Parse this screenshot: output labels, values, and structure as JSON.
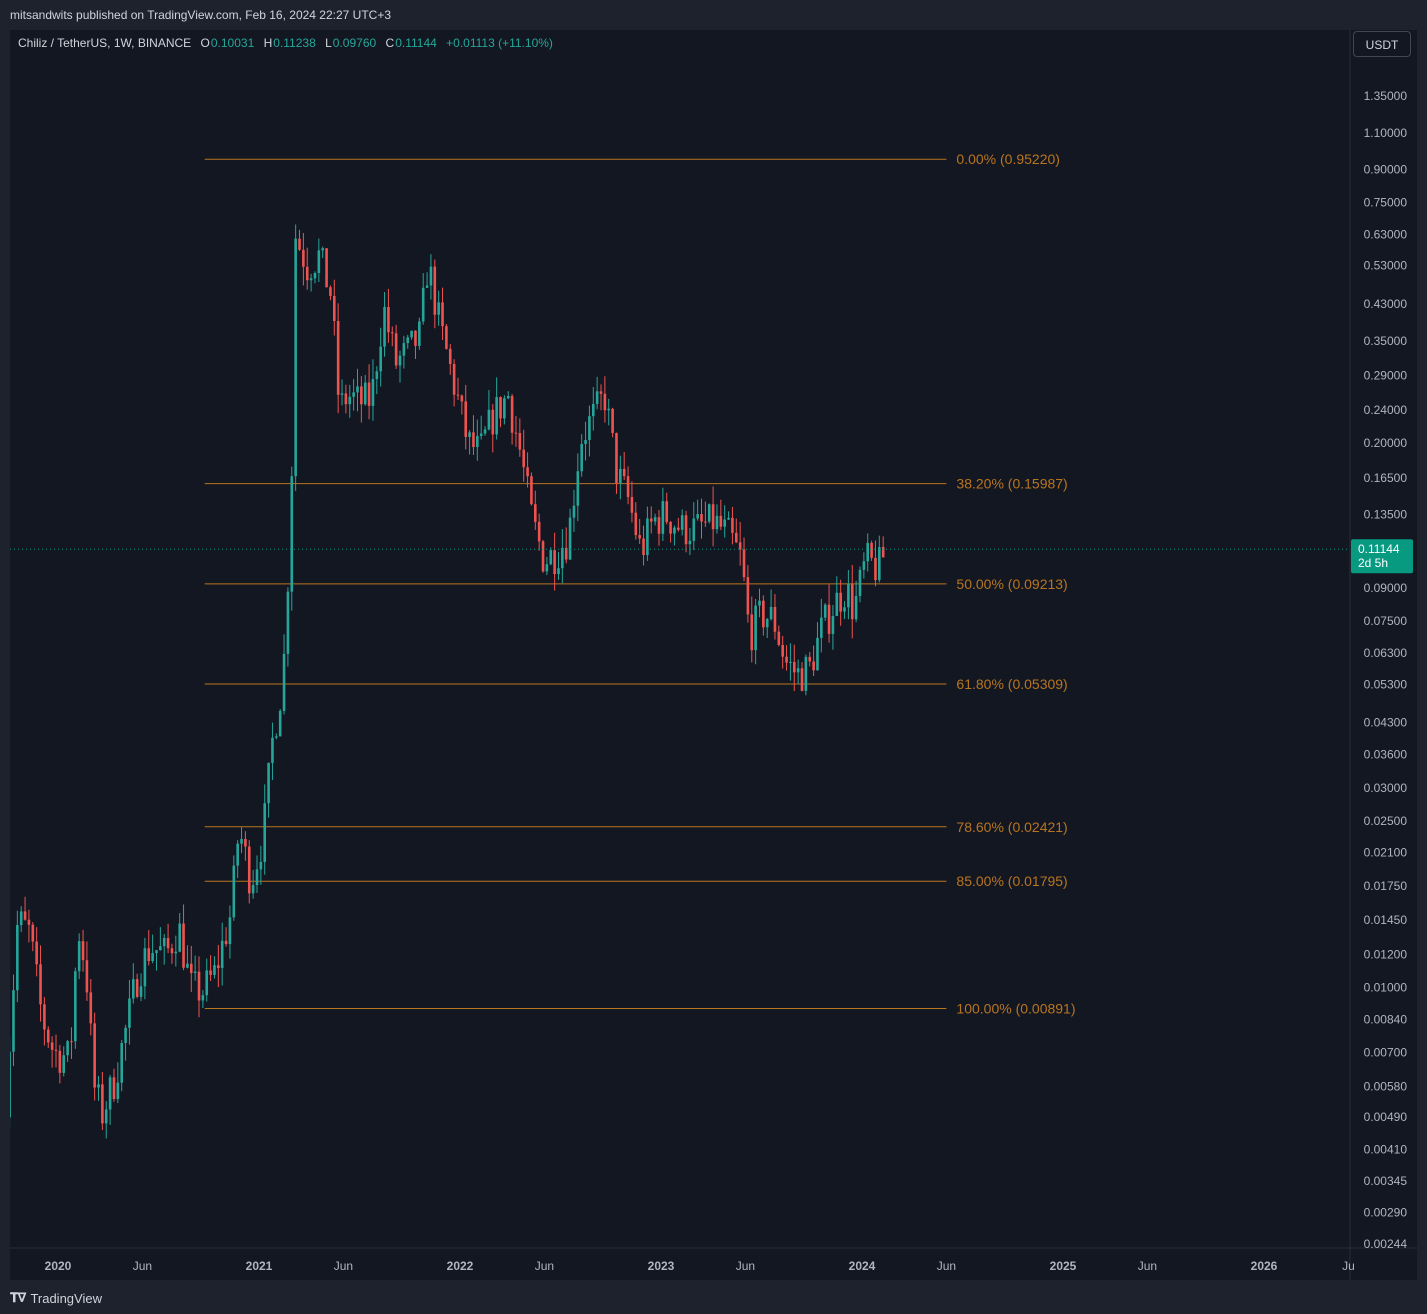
{
  "header": {
    "published_text": "mitsandwits published on TradingView.com, Feb 16, 2024 22:27 UTC+3"
  },
  "legend": {
    "symbol": "Chiliz / TetherUS, 1W, BINANCE",
    "open_label": "O",
    "open": "0.10031",
    "high_label": "H",
    "high": "0.11238",
    "low_label": "L",
    "low": "0.09760",
    "close_label": "C",
    "close": "0.11144",
    "change": "+0.01113 (+11.10%)"
  },
  "toolbar": {
    "currency_button": "USDT"
  },
  "footer": {
    "brand": "TradingView"
  },
  "colors": {
    "background": "#131722",
    "up": "#26a69a",
    "down": "#ef5350",
    "fib": "#b8751f",
    "price_badge": "#089981"
  },
  "chart_data": {
    "type": "candlestick",
    "scale": "log",
    "interval": "1W",
    "current_price": {
      "price": "0.11144",
      "countdown": "2d 5h"
    },
    "price_axis_ticks": [
      "1.35000",
      "1.10000",
      "0.90000",
      "0.75000",
      "0.63000",
      "0.53000",
      "0.43000",
      "0.35000",
      "0.29000",
      "0.24000",
      "0.20000",
      "0.16500",
      "0.13500",
      "0.09000",
      "0.07500",
      "0.06300",
      "0.05300",
      "0.04300",
      "0.03600",
      "0.03000",
      "0.02500",
      "0.02100",
      "0.01750",
      "0.01450",
      "0.01200",
      "0.01000",
      "0.00840",
      "0.00700",
      "0.00580",
      "0.00490",
      "0.00410",
      "0.00345",
      "0.00290",
      "0.00244"
    ],
    "time_axis_ticks": [
      {
        "label": "2020",
        "t": 2020.0,
        "bold": true
      },
      {
        "label": "Jun",
        "t": 2020.42
      },
      {
        "label": "2021",
        "t": 2021.0,
        "bold": true
      },
      {
        "label": "Jun",
        "t": 2021.42
      },
      {
        "label": "2022",
        "t": 2022.0,
        "bold": true
      },
      {
        "label": "Jun",
        "t": 2022.42
      },
      {
        "label": "2023",
        "t": 2023.0,
        "bold": true
      },
      {
        "label": "Jun",
        "t": 2023.42
      },
      {
        "label": "2024",
        "t": 2024.0,
        "bold": true
      },
      {
        "label": "Jun",
        "t": 2024.42
      },
      {
        "label": "2025",
        "t": 2025.0,
        "bold": true
      },
      {
        "label": "Jun",
        "t": 2025.42
      },
      {
        "label": "2026",
        "t": 2026.0,
        "bold": true
      },
      {
        "label": "Ju",
        "t": 2026.42
      }
    ],
    "fib_levels": [
      {
        "label": "0.00% (0.95220)",
        "price": 0.9522
      },
      {
        "label": "38.20% (0.15987)",
        "price": 0.15987
      },
      {
        "label": "50.00% (0.09213)",
        "price": 0.09213
      },
      {
        "label": "61.80% (0.05309)",
        "price": 0.05309
      },
      {
        "label": "78.60% (0.02421)",
        "price": 0.02421
      },
      {
        "label": "85.00% (0.01795)",
        "price": 0.01795
      },
      {
        "label": "100.00% (0.00891)",
        "price": 0.00891
      }
    ],
    "fib_range": {
      "start": 2020.73,
      "end": 2024.42
    },
    "price_path": [
      [
        2019.74,
        0.0055
      ],
      [
        2019.8,
        0.0145
      ],
      [
        2019.86,
        0.0135
      ],
      [
        2019.92,
        0.0085
      ],
      [
        2019.98,
        0.007
      ],
      [
        2020.06,
        0.0068
      ],
      [
        2020.1,
        0.014
      ],
      [
        2020.14,
        0.011
      ],
      [
        2020.18,
        0.0058
      ],
      [
        2020.22,
        0.005
      ],
      [
        2020.28,
        0.006
      ],
      [
        2020.34,
        0.008
      ],
      [
        2020.4,
        0.011
      ],
      [
        2020.46,
        0.0125
      ],
      [
        2020.54,
        0.012
      ],
      [
        2020.6,
        0.014
      ],
      [
        2020.66,
        0.01
      ],
      [
        2020.72,
        0.0098
      ],
      [
        2020.78,
        0.0108
      ],
      [
        2020.86,
        0.015
      ],
      [
        2020.9,
        0.024
      ],
      [
        2020.96,
        0.018
      ],
      [
        2021.02,
        0.023
      ],
      [
        2021.07,
        0.04
      ],
      [
        2021.12,
        0.055
      ],
      [
        2021.16,
        0.14
      ],
      [
        2021.18,
        0.63
      ],
      [
        2021.24,
        0.53
      ],
      [
        2021.3,
        0.56
      ],
      [
        2021.36,
        0.45
      ],
      [
        2021.4,
        0.24
      ],
      [
        2021.44,
        0.26
      ],
      [
        2021.5,
        0.25
      ],
      [
        2021.56,
        0.255
      ],
      [
        2021.62,
        0.42
      ],
      [
        2021.68,
        0.31
      ],
      [
        2021.74,
        0.33
      ],
      [
        2021.8,
        0.36
      ],
      [
        2021.84,
        0.54
      ],
      [
        2021.9,
        0.38
      ],
      [
        2021.96,
        0.29
      ],
      [
        2022.04,
        0.2
      ],
      [
        2022.1,
        0.19
      ],
      [
        2022.16,
        0.23
      ],
      [
        2022.24,
        0.26
      ],
      [
        2022.3,
        0.19
      ],
      [
        2022.36,
        0.13
      ],
      [
        2022.42,
        0.105
      ],
      [
        2022.48,
        0.11
      ],
      [
        2022.54,
        0.12
      ],
      [
        2022.6,
        0.205
      ],
      [
        2022.66,
        0.23
      ],
      [
        2022.72,
        0.26
      ],
      [
        2022.78,
        0.17
      ],
      [
        2022.84,
        0.145
      ],
      [
        2022.9,
        0.11
      ],
      [
        2022.96,
        0.13
      ],
      [
        2023.02,
        0.135
      ],
      [
        2023.1,
        0.125
      ],
      [
        2023.18,
        0.125
      ],
      [
        2023.26,
        0.13
      ],
      [
        2023.34,
        0.12
      ],
      [
        2023.4,
        0.105
      ],
      [
        2023.44,
        0.07
      ],
      [
        2023.5,
        0.078
      ],
      [
        2023.56,
        0.076
      ],
      [
        2023.62,
        0.06
      ],
      [
        2023.68,
        0.056
      ],
      [
        2023.74,
        0.058
      ],
      [
        2023.8,
        0.072
      ],
      [
        2023.86,
        0.082
      ],
      [
        2023.92,
        0.09
      ],
      [
        2023.96,
        0.08
      ],
      [
        2024.02,
        0.105
      ],
      [
        2024.08,
        0.1
      ],
      [
        2024.12,
        0.1114
      ]
    ]
  }
}
